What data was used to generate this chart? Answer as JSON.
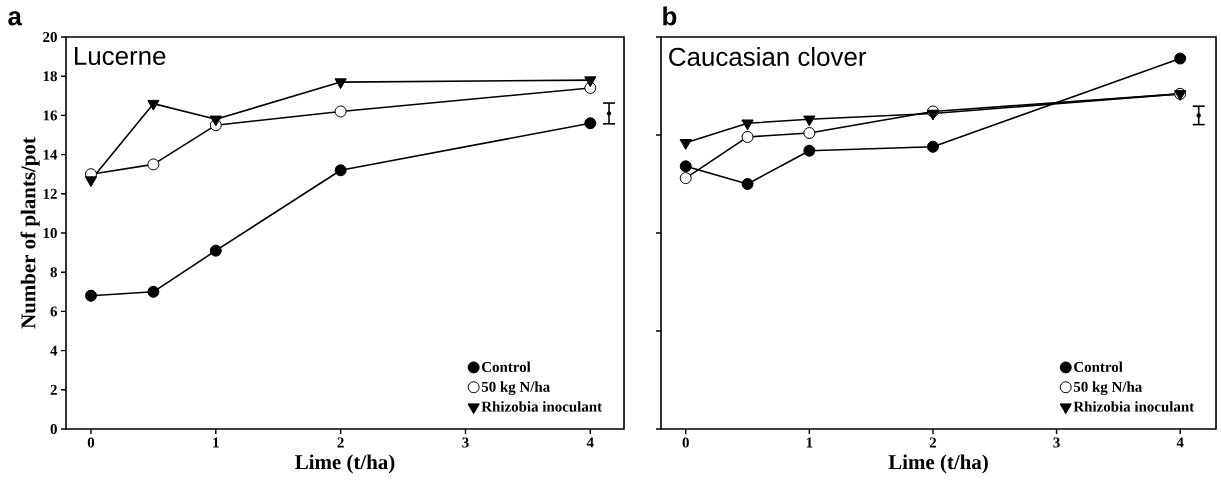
{
  "chart_data": [
    {
      "type": "line",
      "title": "a",
      "subtitle": "Lucerne",
      "xlabel": "Lime (t/ha)",
      "ylabel": "Number of plants/pot",
      "x": [
        0,
        0.5,
        1,
        2,
        4
      ],
      "xlim": [
        -0.2,
        4.27
      ],
      "xticks": [
        0,
        1,
        2,
        3,
        4
      ],
      "ylim": [
        0,
        20
      ],
      "yticks": [
        0,
        2,
        4,
        6,
        8,
        10,
        12,
        14,
        16,
        18,
        20
      ],
      "legend": "bottom right",
      "grid": false,
      "series": [
        {
          "name": "Control",
          "color": "#000000",
          "marker": "circle",
          "values": [
            6.8,
            7.0,
            9.1,
            13.2,
            15.6
          ]
        },
        {
          "name": "50 kg N/ha",
          "color": "#000000",
          "marker": "circle-open",
          "values": [
            13.0,
            13.5,
            15.5,
            16.2,
            17.4
          ]
        },
        {
          "name": "Rhizobia inoculant",
          "color": "#000000",
          "marker": "triangle",
          "values": [
            12.7,
            16.6,
            15.8,
            17.7,
            17.8
          ]
        },
        {
          "type": "scatter",
          "color": "#000000",
          "marker": "none",
          "x": [
            4.15
          ],
          "values": [
            16.1
          ],
          "errors": [
            0.53
          ]
        }
      ]
    },
    {
      "type": "line",
      "title": "b",
      "subtitle": "Caucasian clover",
      "xlabel": "Lime (t/ha)",
      "x": [
        0,
        0.5,
        1,
        2,
        4
      ],
      "xlim": [
        -0.2,
        4.29
      ],
      "xticks": [
        0,
        1,
        2,
        3,
        4
      ],
      "ylim": [
        0,
        20
      ],
      "yticks": [
        {
          "value": 0,
          "label": null
        },
        {
          "value": 5,
          "label": null
        },
        {
          "value": 10,
          "label": null
        },
        {
          "value": 15,
          "label": null
        },
        {
          "value": 20,
          "label": null
        }
      ],
      "tick_labels": "x",
      "legend": "bottom right",
      "grid": false,
      "series": [
        {
          "name": "Control",
          "color": "#000000",
          "marker": "circle",
          "values": [
            13.4,
            12.5,
            14.2,
            14.4,
            18.9
          ]
        },
        {
          "name": "50 kg N/ha",
          "color": "#000000",
          "marker": "circle-open",
          "values": [
            12.8,
            14.9,
            15.1,
            16.2,
            17.1
          ]
        },
        {
          "name": "Rhizobia inoculant",
          "color": "#000000",
          "marker": "triangle",
          "values": [
            14.6,
            15.6,
            15.8,
            16.1,
            17.1
          ]
        },
        {
          "type": "scatter",
          "color": "#000000",
          "marker": "none",
          "x": [
            4.15
          ],
          "values": [
            16.0
          ],
          "errors": [
            0.47
          ]
        }
      ]
    }
  ]
}
